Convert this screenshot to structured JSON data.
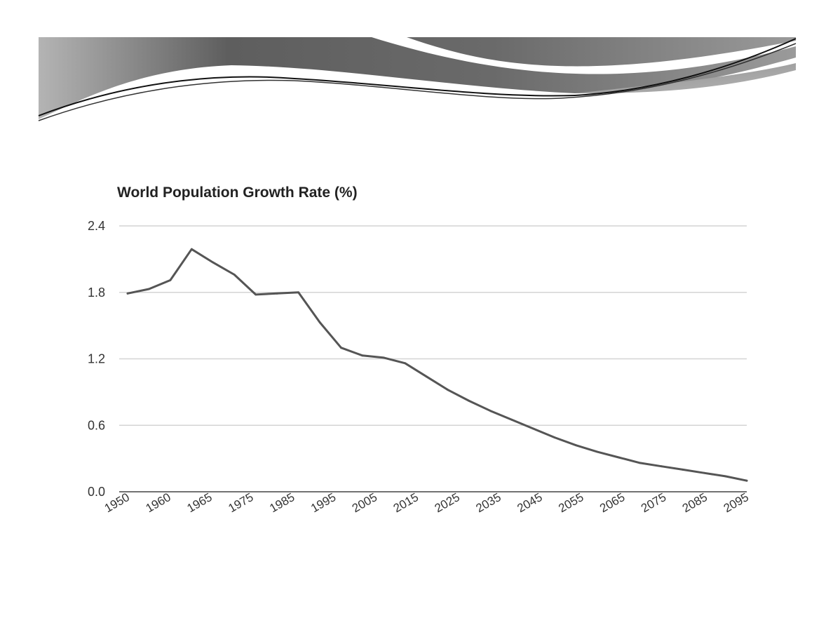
{
  "chart_data": {
    "type": "line",
    "title": "World Population Growth Rate (%)",
    "xlabel": "",
    "ylabel": "",
    "x": [
      1950,
      1955,
      1960,
      1965,
      1970,
      1975,
      1980,
      1985,
      1990,
      1995,
      2000,
      2005,
      2010,
      2015,
      2020,
      2025,
      2030,
      2035,
      2040,
      2045,
      2050,
      2055,
      2060,
      2065,
      2070,
      2075,
      2080,
      2085,
      2090,
      2095
    ],
    "series": [
      {
        "values": [
          1.79,
          1.83,
          1.91,
          2.19,
          2.07,
          1.96,
          1.78,
          1.79,
          1.8,
          1.53,
          1.3,
          1.23,
          1.21,
          1.16,
          1.04,
          0.92,
          0.82,
          0.73,
          0.65,
          0.57,
          0.49,
          0.42,
          0.36,
          0.31,
          0.26,
          0.23,
          0.2,
          0.17,
          0.14,
          0.1
        ],
        "color": "#555555"
      }
    ],
    "ylim": [
      0,
      2.4
    ],
    "y_ticks": [
      "0.0",
      "0.6",
      "1.2",
      "1.8",
      "2.4"
    ],
    "x_tick_labels": [
      "1950",
      "1960",
      "1965",
      "1975",
      "1985",
      "1995",
      "2005",
      "2015",
      "2025",
      "2035",
      "2045",
      "2055",
      "2065",
      "2075",
      "2085",
      "2095"
    ],
    "grid": true,
    "legend": "none"
  }
}
